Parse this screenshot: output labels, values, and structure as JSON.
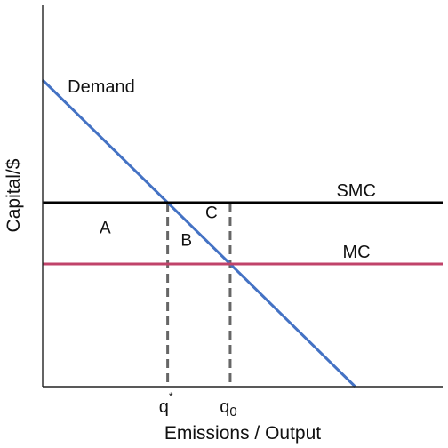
{
  "chart_data": {
    "type": "line",
    "title": "",
    "xlabel": "Emissions / Output",
    "ylabel": "Capital/$",
    "grid": false,
    "xlim": [
      0,
      6.4
    ],
    "ylim": [
      0,
      5
    ],
    "series": [
      {
        "name": "Demand",
        "points": [
          [
            0,
            5
          ],
          [
            5,
            0
          ]
        ],
        "color": "#4472c4"
      },
      {
        "name": "SMC",
        "points": [
          [
            0,
            3
          ],
          [
            6.4,
            3
          ]
        ],
        "color": "#000000"
      },
      {
        "name": "MC",
        "points": [
          [
            0,
            2
          ],
          [
            6.4,
            2
          ]
        ],
        "color": "#c0436a"
      }
    ],
    "x_ticks": [
      {
        "x": 2,
        "base": "q",
        "sup": "*"
      },
      {
        "x": 3,
        "base": "q",
        "sub": "0"
      }
    ],
    "guides": [
      {
        "x": 2,
        "y": 3
      },
      {
        "x": 3,
        "y": 3
      }
    ],
    "regions": [
      {
        "label": "A",
        "x": 1,
        "y": 2.5
      },
      {
        "label": "B",
        "x": 2.3,
        "y": 2.3
      },
      {
        "label": "C",
        "x": 2.7,
        "y": 2.75
      }
    ],
    "curve_labels": [
      {
        "text": "Demand",
        "x": 0.4,
        "y": 4.8
      },
      {
        "text": "SMC",
        "x": 4.7,
        "y": 3.1
      },
      {
        "text": "MC",
        "x": 4.8,
        "y": 2.1
      }
    ],
    "colors": {
      "axis": "#222222",
      "guide": "#666666"
    }
  }
}
